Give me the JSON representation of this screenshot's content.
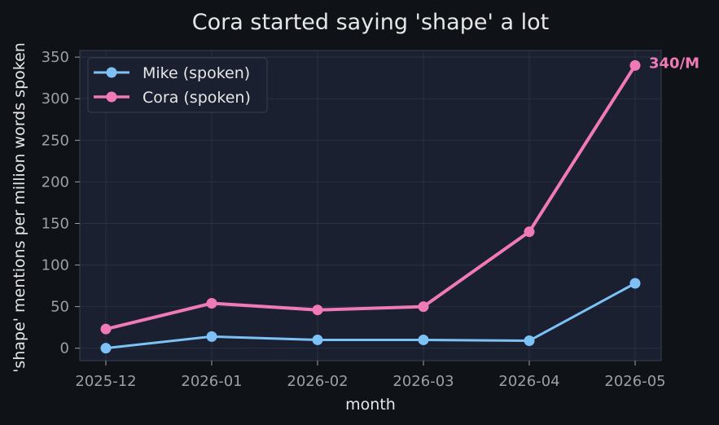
{
  "chart_data": {
    "type": "line",
    "title": "Cora started saying 'shape' a lot",
    "xlabel": "month",
    "ylabel": "'shape' mentions per million words spoken",
    "categories": [
      "2025-12",
      "2026-01",
      "2026-02",
      "2026-03",
      "2026-04",
      "2026-05"
    ],
    "ylim": [
      -15,
      358
    ],
    "yticks": [
      0,
      50,
      100,
      150,
      200,
      250,
      300,
      350
    ],
    "grid": true,
    "legend_position": "top-left",
    "series": [
      {
        "name": "Mike (spoken)",
        "values": [
          0,
          14,
          10,
          10,
          9,
          78
        ],
        "color": "#7cc2f7"
      },
      {
        "name": "Cora (spoken)",
        "values": [
          23,
          54,
          46,
          50,
          140,
          340
        ],
        "color": "#f07ab8"
      }
    ],
    "annotations": [
      {
        "text": "340/M",
        "series": 1,
        "index": 5
      }
    ],
    "colors": {
      "background": "#0f1317",
      "plot_background": "#1b2030",
      "grid": "#283041",
      "spine": "#3a4150"
    }
  }
}
